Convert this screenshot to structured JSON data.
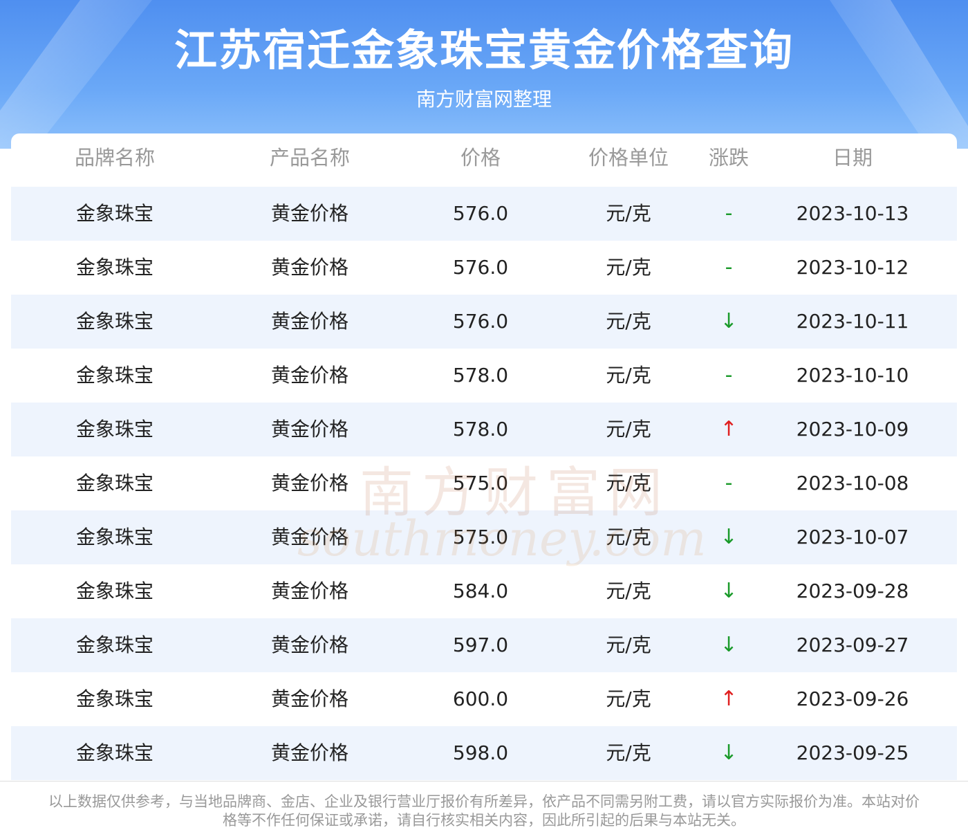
{
  "header": {
    "title": "江苏宿迁金象珠宝黄金价格查询",
    "subtitle": "南方财富网整理"
  },
  "table": {
    "columns": [
      "品牌名称",
      "产品名称",
      "价格",
      "价格单位",
      "涨跌",
      "日期"
    ],
    "rows": [
      {
        "brand": "金象珠宝",
        "product": "黄金价格",
        "price": "576.0",
        "unit": "元/克",
        "trend": "-",
        "trend_color": "#1a9a2a",
        "date": "2023-10-13"
      },
      {
        "brand": "金象珠宝",
        "product": "黄金价格",
        "price": "576.0",
        "unit": "元/克",
        "trend": "-",
        "trend_color": "#1a9a2a",
        "date": "2023-10-12"
      },
      {
        "brand": "金象珠宝",
        "product": "黄金价格",
        "price": "576.0",
        "unit": "元/克",
        "trend": "↓",
        "trend_color": "#1a9a2a",
        "date": "2023-10-11"
      },
      {
        "brand": "金象珠宝",
        "product": "黄金价格",
        "price": "578.0",
        "unit": "元/克",
        "trend": "-",
        "trend_color": "#1a9a2a",
        "date": "2023-10-10"
      },
      {
        "brand": "金象珠宝",
        "product": "黄金价格",
        "price": "578.0",
        "unit": "元/克",
        "trend": "↑",
        "trend_color": "#e02020",
        "date": "2023-10-09"
      },
      {
        "brand": "金象珠宝",
        "product": "黄金价格",
        "price": "575.0",
        "unit": "元/克",
        "trend": "-",
        "trend_color": "#1a9a2a",
        "date": "2023-10-08"
      },
      {
        "brand": "金象珠宝",
        "product": "黄金价格",
        "price": "575.0",
        "unit": "元/克",
        "trend": "↓",
        "trend_color": "#1a9a2a",
        "date": "2023-10-07"
      },
      {
        "brand": "金象珠宝",
        "product": "黄金价格",
        "price": "584.0",
        "unit": "元/克",
        "trend": "↓",
        "trend_color": "#1a9a2a",
        "date": "2023-09-28"
      },
      {
        "brand": "金象珠宝",
        "product": "黄金价格",
        "price": "597.0",
        "unit": "元/克",
        "trend": "↓",
        "trend_color": "#1a9a2a",
        "date": "2023-09-27"
      },
      {
        "brand": "金象珠宝",
        "product": "黄金价格",
        "price": "600.0",
        "unit": "元/克",
        "trend": "↑",
        "trend_color": "#e02020",
        "date": "2023-09-26"
      },
      {
        "brand": "金象珠宝",
        "product": "黄金价格",
        "price": "598.0",
        "unit": "元/克",
        "trend": "↓",
        "trend_color": "#1a9a2a",
        "date": "2023-09-25"
      }
    ]
  },
  "watermark": {
    "cn": "南方财富网",
    "en": "southmoney.com"
  },
  "footer": {
    "note": "以上数据仅供参考，与当地品牌商、金店、企业及银行营业厅报价有所差异，依产品不同需另附工费，请以官方实际报价为准。本站对价格等不作任何保证或承诺，请自行核实相关内容，因此所引起的后果与本站无关。"
  }
}
